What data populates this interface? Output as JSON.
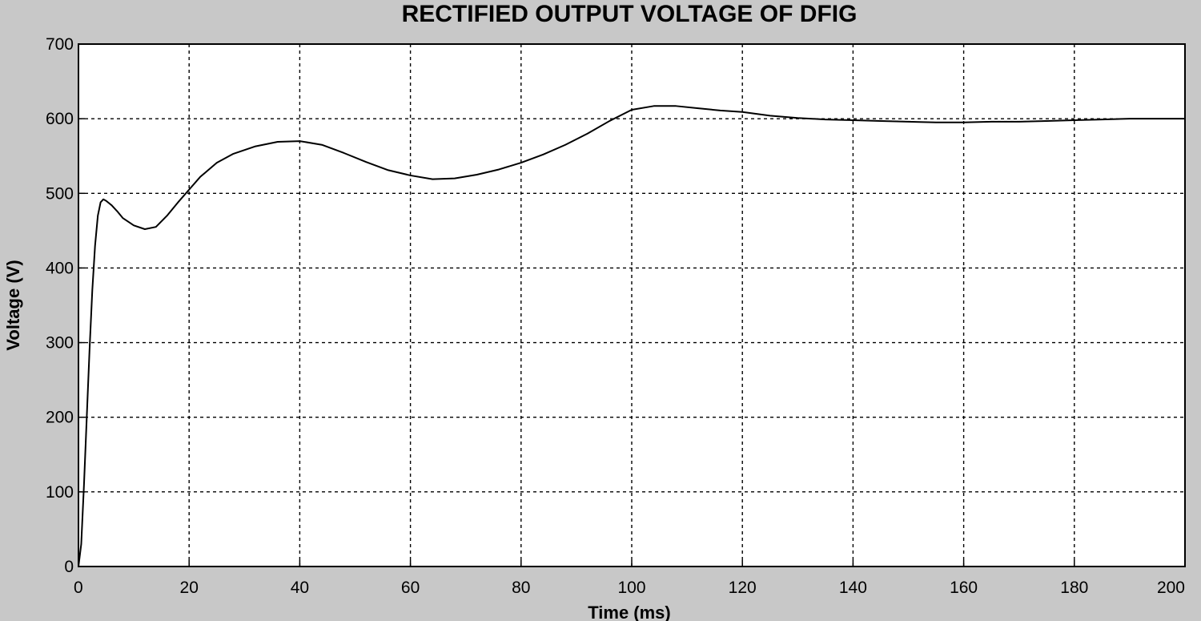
{
  "chart_data": {
    "type": "line",
    "title": "RECTIFIED OUTPUT VOLTAGE OF DFIG",
    "xlabel": "Time (ms)",
    "ylabel": "Voltage (V)",
    "xlim": [
      0,
      200
    ],
    "ylim": [
      0,
      700
    ],
    "xticks": [
      0,
      20,
      40,
      60,
      80,
      100,
      120,
      140,
      160,
      180,
      200
    ],
    "yticks": [
      0,
      100,
      200,
      300,
      400,
      500,
      600,
      700
    ],
    "grid": true,
    "legend": "none",
    "colors": {
      "background": "#c8c8c8",
      "plot_area": "#ffffff",
      "line": "#000000"
    },
    "series": [
      {
        "x": [
          0,
          0.5,
          1,
          1.5,
          2,
          2.5,
          3,
          3.5,
          4,
          4.5,
          5,
          6,
          7,
          8,
          10,
          12,
          14,
          16,
          18,
          20,
          22,
          25,
          28,
          32,
          36,
          40,
          44,
          48,
          52,
          56,
          60,
          64,
          68,
          72,
          76,
          80,
          84,
          88,
          92,
          96,
          100,
          104,
          108,
          112,
          116,
          120,
          125,
          130,
          135,
          140,
          145,
          150,
          155,
          160,
          165,
          170,
          175,
          180,
          185,
          190,
          195,
          200
        ],
        "values": [
          0,
          30,
          110,
          200,
          290,
          370,
          430,
          470,
          488,
          492,
          490,
          484,
          476,
          467,
          457,
          452,
          455,
          470,
          488,
          505,
          522,
          541,
          553,
          563,
          569,
          570,
          565,
          554,
          542,
          531,
          524,
          519,
          520,
          525,
          532,
          541,
          552,
          565,
          580,
          597,
          612,
          617,
          617,
          614,
          611,
          609,
          604,
          601,
          599,
          598,
          597,
          596,
          595,
          595,
          596,
          596,
          597,
          598,
          599,
          600,
          600,
          600
        ]
      }
    ]
  }
}
